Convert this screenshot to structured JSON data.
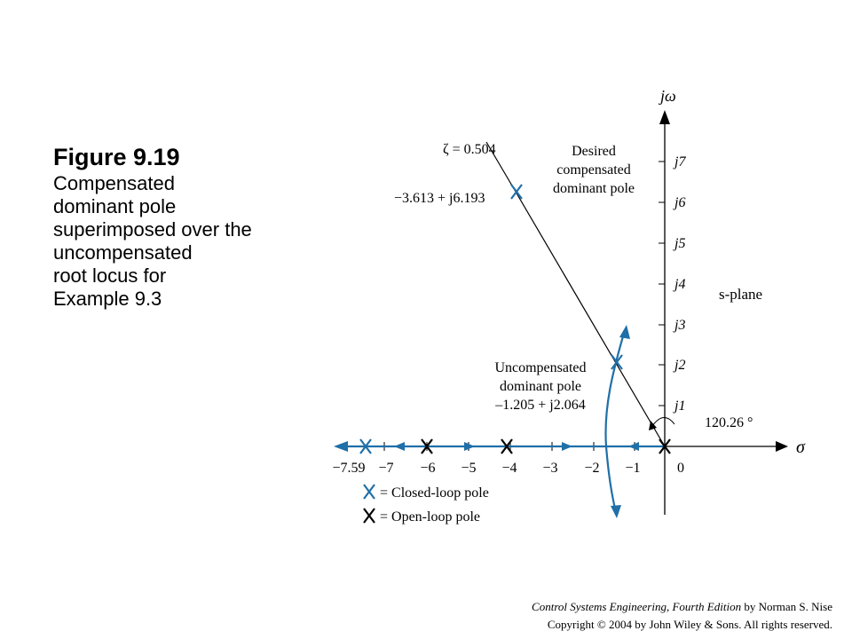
{
  "caption": {
    "title": "Figure 9.19",
    "body_lines": [
      "Compensated",
      "dominant pole",
      "superimposed over the",
      "uncompensated",
      "root locus for",
      "Example 9.3"
    ]
  },
  "axes": {
    "x_label": "σ",
    "y_label": "jω",
    "plane_label": "s-plane",
    "x_ticks": [
      "−7.59",
      "−7",
      "−6",
      "−5",
      "−4",
      "−3",
      "−2",
      "−1",
      "0"
    ],
    "y_ticks": [
      "j1",
      "j2",
      "j3",
      "j4",
      "j5",
      "j6",
      "j7"
    ]
  },
  "annotations": {
    "zeta_line": "ζ = 0.504",
    "desired_pole_lines": [
      "Desired",
      "compensated",
      "dominant pole"
    ],
    "desired_pole_value": "−3.613 + j6.193",
    "uncomp_pole_lines": [
      "Uncompensated",
      "dominant pole",
      "–1.205 + j2.064"
    ],
    "angle": "120.26 °"
  },
  "legend": {
    "closed_loop": "= Closed-loop pole",
    "open_loop": "= Open-loop pole"
  },
  "colors": {
    "locus": "#1f6fa8",
    "ink": "#000000"
  },
  "credit": {
    "line1_book": "Control Systems Engineering, Fourth Edition",
    "line1_rest": " by Norman S. Nise",
    "line2": "Copyright © 2004 by John Wiley & Sons. All rights reserved."
  }
}
